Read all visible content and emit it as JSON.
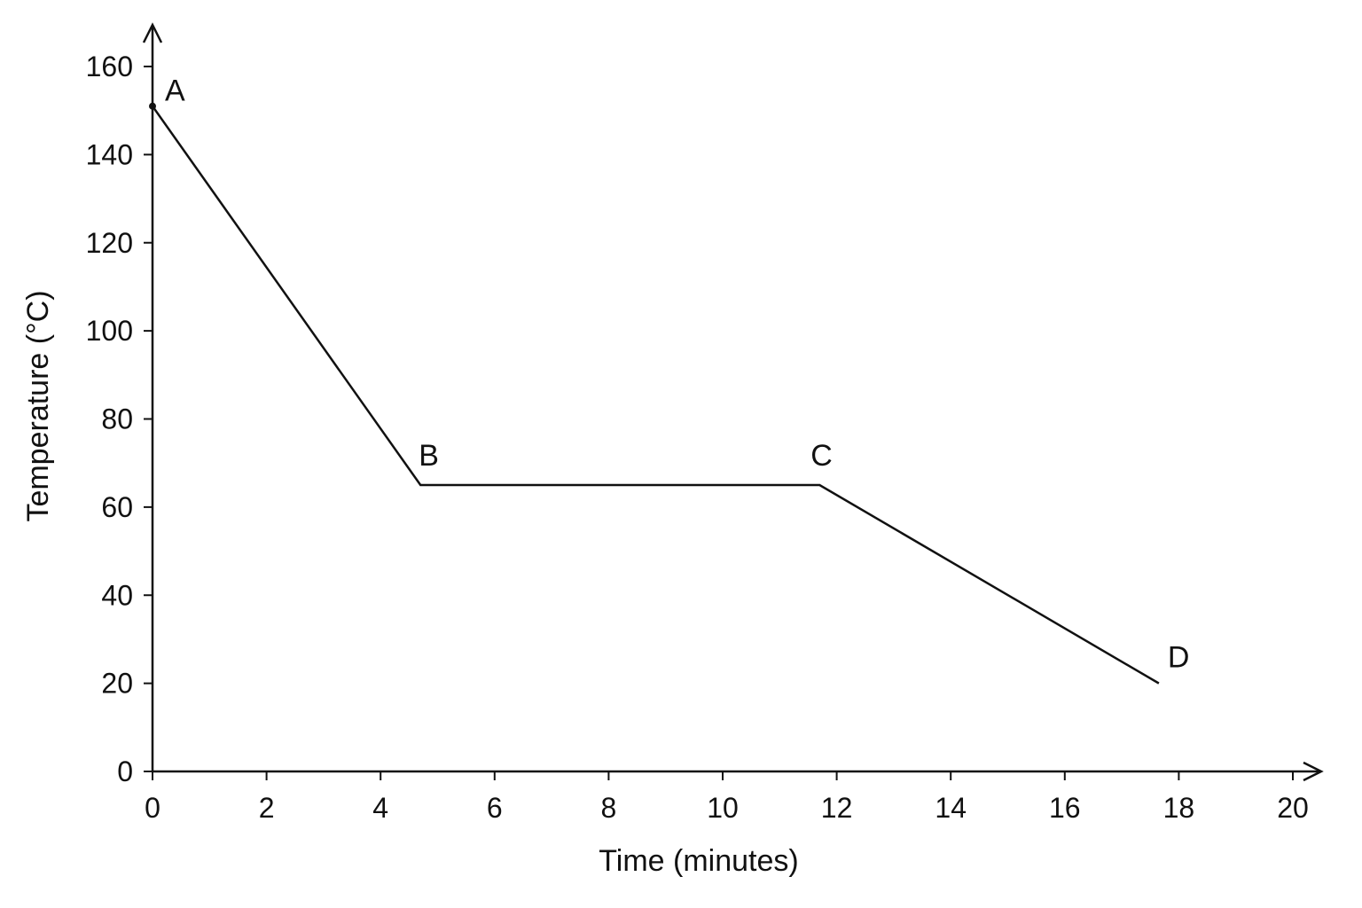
{
  "chart_data": {
    "type": "line",
    "title": "",
    "xlabel": "Time (minutes)",
    "ylabel": "Temperature (°C)",
    "xlim": [
      0,
      20
    ],
    "ylim": [
      0,
      160
    ],
    "xticks": [
      0,
      2,
      4,
      6,
      8,
      10,
      12,
      14,
      16,
      18,
      20
    ],
    "yticks": [
      0,
      20,
      40,
      60,
      80,
      100,
      120,
      140,
      160
    ],
    "grid": false,
    "series": [
      {
        "points": [
          {
            "label": "A",
            "x": 0,
            "y": 151
          },
          {
            "label": "B",
            "x": 4.7,
            "y": 65
          },
          {
            "label": "C",
            "x": 11.7,
            "y": 65
          },
          {
            "label": "D",
            "x": 17.65,
            "y": 20
          }
        ]
      }
    ],
    "colors": {
      "line": "#111111",
      "axis": "#111111",
      "text": "#111111"
    }
  }
}
